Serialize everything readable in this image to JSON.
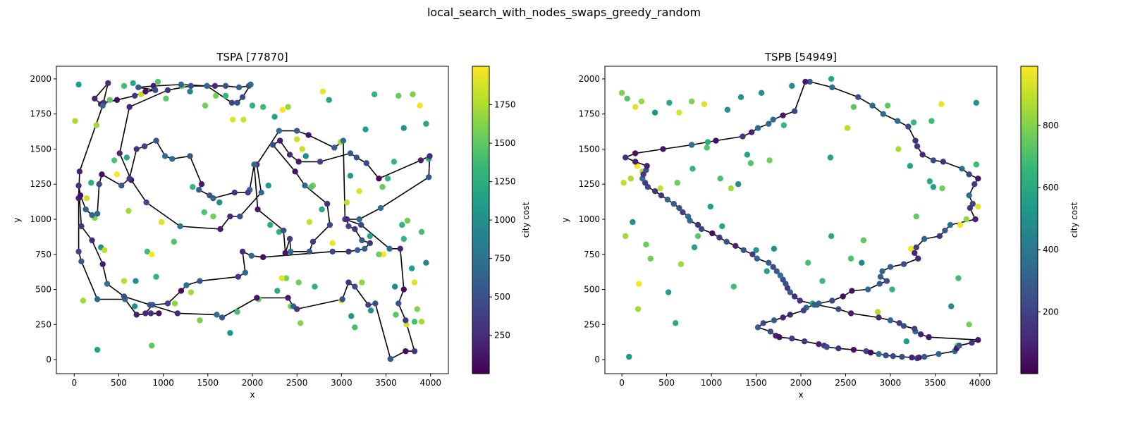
{
  "suptitle": "local_search_with_nodes_swaps_greedy_random",
  "colormap": [
    "#440154",
    "#482878",
    "#3e4989",
    "#31688e",
    "#26828e",
    "#1f9e89",
    "#35b779",
    "#6ece58",
    "#b5de2b",
    "#fde725"
  ],
  "chart_data": [
    {
      "type": "scatter",
      "title": "TSPA [77870]",
      "xlabel": "x",
      "ylabel": "y",
      "colorbar_label": "city cost",
      "xlim": [
        -200,
        4200
      ],
      "ylim": [
        -100,
        2090
      ],
      "xticks": [
        0,
        500,
        1000,
        1500,
        2000,
        2500,
        3000,
        3500,
        4000
      ],
      "yticks": [
        0,
        250,
        500,
        750,
        1000,
        1250,
        1500,
        1750,
        2000
      ],
      "cbar_range": [
        1,
        2000
      ],
      "cbar_ticks": [
        250,
        500,
        750,
        1000,
        1250,
        1500,
        1750
      ],
      "tour_x": [
        3550,
        3720,
        3820,
        3720,
        3640,
        3700,
        3660,
        3540,
        3220,
        3040,
        3020,
        2920,
        2630,
        2500,
        2300,
        2050,
        2100,
        1860,
        1750,
        1640,
        1190,
        810,
        640,
        510,
        620,
        1050,
        1310,
        1490,
        1580,
        1700,
        1850,
        1960,
        1980,
        1890,
        1830,
        1770,
        1490,
        1200,
        890,
        720,
        910,
        800,
        680,
        480,
        330,
        300,
        230,
        380,
        320,
        60,
        50,
        50,
        80,
        260,
        570,
        700,
        950,
        860,
        800,
        880,
        1050,
        1200,
        1260,
        1410,
        1840,
        1920,
        1890,
        1990,
        2120,
        2900,
        3080,
        3180,
        3260,
        3320,
        3230,
        3150,
        3080,
        3060,
        3200,
        3440,
        3980,
        3990,
        3890,
        3420,
        3280,
        3170,
        3100,
        2760,
        2520,
        2420,
        2310,
        2230,
        2480,
        2590,
        2840,
        2870,
        2680,
        2640,
        2430,
        2420,
        2370,
        2350,
        2060,
        2020,
        1970,
        1950,
        1800,
        1560,
        1520,
        1400,
        1430,
        1300,
        1100,
        1020,
        920,
        790,
        700,
        620,
        530,
        310,
        280,
        260,
        200,
        130,
        70,
        50,
        80,
        200,
        320,
        370,
        560,
        850,
        1160,
        1600,
        1660,
        2050,
        2400,
        2460,
        2500,
        3010,
        3080,
        3150,
        3300,
        3380,
        3550
      ],
      "tour_y": [
        5,
        60,
        60,
        280,
        400,
        500,
        790,
        790,
        960,
        1000,
        1560,
        1510,
        1600,
        1630,
        1630,
        1390,
        1190,
        1020,
        1020,
        930,
        950,
        1120,
        1280,
        1470,
        1800,
        1920,
        1950,
        1950,
        1950,
        1950,
        1940,
        1950,
        1960,
        1870,
        1830,
        1830,
        1950,
        1960,
        1950,
        1940,
        1920,
        1910,
        1880,
        1850,
        1830,
        1820,
        1860,
        1970,
        1810,
        1340,
        1150,
        770,
        700,
        430,
        430,
        320,
        330,
        330,
        330,
        390,
        400,
        490,
        530,
        560,
        590,
        620,
        770,
        740,
        730,
        770,
        770,
        780,
        790,
        830,
        850,
        930,
        950,
        1000,
        1000,
        1080,
        1300,
        1450,
        1420,
        1290,
        1400,
        1440,
        1470,
        1410,
        1410,
        1460,
        1560,
        1530,
        1340,
        1240,
        1110,
        960,
        840,
        770,
        770,
        860,
        760,
        920,
        1070,
        1390,
        1210,
        1190,
        1190,
        1150,
        1170,
        1210,
        1250,
        1450,
        1430,
        1450,
        1560,
        1520,
        1500,
        1290,
        1240,
        1320,
        1250,
        1040,
        1030,
        1070,
        1170,
        1240,
        950,
        850,
        680,
        540,
        450,
        390,
        330,
        320,
        300,
        440,
        440,
        380,
        360,
        430,
        550,
        520,
        390,
        400,
        5
      ],
      "tour_y_note": "",
      "extra_x": [
        50,
        250,
        400,
        560,
        660,
        750,
        900,
        940,
        1030,
        1210,
        1300,
        1470,
        1590,
        1700,
        1900,
        2000,
        2120,
        2250,
        2340,
        2400,
        2500,
        2560,
        2600,
        2680,
        2790,
        2860,
        2990,
        3100,
        3200,
        3270,
        3370,
        3460,
        3520,
        3590,
        3640,
        3700,
        3800,
        3880,
        3950,
        3980,
        10,
        140,
        230,
        300,
        450,
        560,
        610,
        690,
        820,
        870,
        980,
        1120,
        1330,
        1460,
        1630,
        1780,
        2200,
        2300,
        2380,
        2520,
        2660,
        2780,
        2900,
        3000,
        3110,
        3230,
        3330,
        3470,
        3610,
        3700,
        3740,
        3820,
        3900,
        3950,
        100,
        190,
        260,
        340,
        480,
        590,
        680,
        870,
        920,
        1130,
        1310,
        1410,
        1560,
        1750,
        1830,
        2070,
        2180,
        2280,
        2330,
        2430,
        2540,
        2640,
        2700,
        3060,
        3150,
        3320,
        3420,
        3600,
        3680,
        3730,
        3790,
        3820,
        3850,
        3900
      ],
      "extra_y": [
        1960,
        1670,
        1850,
        1950,
        1970,
        1890,
        1940,
        1980,
        1860,
        1950,
        1910,
        1810,
        1880,
        1880,
        1710,
        1810,
        1800,
        1730,
        1780,
        1800,
        1570,
        1500,
        1450,
        1240,
        1910,
        1850,
        1550,
        1310,
        1200,
        1640,
        1890,
        1230,
        1290,
        1410,
        1880,
        1650,
        1890,
        1810,
        1680,
        1430,
        1700,
        1150,
        1010,
        800,
        1420,
        560,
        1060,
        560,
        770,
        750,
        980,
        840,
        1230,
        1050,
        1120,
        1710,
        960,
        910,
        580,
        550,
        1230,
        1070,
        830,
        420,
        310,
        550,
        350,
        750,
        320,
        860,
        990,
        270,
        910,
        690,
        420,
        1260,
        70,
        780,
        1320,
        1440,
        380,
        100,
        590,
        400,
        480,
        280,
        1020,
        190,
        340,
        430,
        1240,
        490,
        580,
        380,
        260,
        980,
        520,
        1120,
        230,
        880,
        750,
        520,
        960,
        250,
        650,
        550,
        360,
        270
      ],
      "points_c": []
    },
    {
      "type": "scatter",
      "title": "TSPB [54949]",
      "xlabel": "x",
      "ylabel": "y",
      "colorbar_label": "city cost",
      "xlim": [
        -190,
        4190
      ],
      "ylim": [
        -100,
        2090
      ],
      "xticks": [
        0,
        500,
        1000,
        1500,
        2000,
        2500,
        3000,
        3500,
        4000
      ],
      "yticks": [
        0,
        250,
        500,
        750,
        1000,
        1250,
        1500,
        1750,
        2000
      ],
      "cbar_range": [
        1,
        990
      ],
      "cbar_ticks": [
        200,
        400,
        600,
        800
      ],
      "tour_x": [
        2100,
        2350,
        2640,
        2800,
        2920,
        3080,
        3200,
        3280,
        3300,
        3360,
        3480,
        3590,
        3800,
        3880,
        3980,
        3940,
        3880,
        3920,
        3890,
        3950,
        3670,
        3610,
        3550,
        3380,
        3290,
        3270,
        3310,
        3150,
        3000,
        2910,
        2890,
        2960,
        2880,
        2750,
        2570,
        2470,
        2350,
        2200,
        2150,
        2060,
        2030,
        1880,
        1800,
        1700,
        1580,
        1520,
        1660,
        1720,
        1760,
        1900,
        2040,
        2200,
        2260,
        2290,
        2420,
        2590,
        2730,
        2780,
        2870,
        2950,
        3030,
        3130,
        3240,
        3300,
        3320,
        3380,
        3540,
        3720,
        3740,
        3770,
        3910,
        3980,
        3430,
        3340,
        3280,
        3270,
        3150,
        3100,
        3000,
        2870,
        2560,
        2420,
        2180,
        1990,
        1930,
        1880,
        1850,
        1830,
        1800,
        1770,
        1730,
        1690,
        1640,
        1510,
        1460,
        1360,
        1270,
        1170,
        1090,
        1010,
        890,
        850,
        760,
        740,
        680,
        640,
        580,
        510,
        440,
        370,
        290,
        260,
        230,
        240,
        270,
        280,
        150,
        40,
        150,
        460,
        780,
        1050,
        1350,
        1450,
        1520,
        1640,
        1690,
        1800,
        1930,
        2050,
        2100
      ],
      "tour_y": [
        1980,
        1940,
        1870,
        1810,
        1750,
        1700,
        1660,
        1560,
        1520,
        1460,
        1420,
        1410,
        1360,
        1320,
        1290,
        1250,
        1170,
        1110,
        1080,
        1000,
        960,
        920,
        880,
        860,
        800,
        760,
        720,
        680,
        660,
        630,
        590,
        560,
        540,
        500,
        490,
        450,
        420,
        400,
        390,
        370,
        350,
        320,
        300,
        280,
        260,
        230,
        200,
        170,
        160,
        150,
        130,
        110,
        100,
        90,
        80,
        70,
        60,
        50,
        40,
        30,
        25,
        20,
        15,
        10,
        15,
        20,
        40,
        60,
        80,
        100,
        120,
        140,
        160,
        180,
        200,
        220,
        240,
        260,
        280,
        300,
        330,
        360,
        390,
        420,
        450,
        480,
        510,
        540,
        570,
        600,
        630,
        660,
        690,
        720,
        750,
        780,
        810,
        840,
        870,
        900,
        930,
        960,
        990,
        1020,
        1050,
        1080,
        1110,
        1140,
        1170,
        1200,
        1230,
        1260,
        1290,
        1320,
        1350,
        1380,
        1410,
        1440,
        1470,
        1500,
        1530,
        1560,
        1590,
        1620,
        1650,
        1680,
        1710,
        1740,
        1770,
        1980
      ],
      "tour_y_note": "",
      "extra_x": [
        0,
        60,
        150,
        220,
        370,
        530,
        640,
        780,
        920,
        1180,
        1330,
        1560,
        1900,
        2340,
        2590,
        2970,
        3260,
        3460,
        3570,
        3960,
        20,
        100,
        170,
        230,
        430,
        620,
        790,
        950,
        1100,
        1220,
        1400,
        1650,
        1810,
        2330,
        2520,
        2700,
        3090,
        3220,
        3440,
        3580,
        3780,
        3980,
        40,
        120,
        190,
        270,
        520,
        660,
        810,
        990,
        1120,
        1300,
        1440,
        1620,
        2080,
        2240,
        2680,
        3020,
        3230,
        3290,
        3480,
        3760,
        3850,
        3960,
        80,
        180,
        320,
        600,
        850,
        960,
        1250,
        1500,
        1700,
        2130,
        2340,
        2560,
        2860,
        3180,
        3680,
        3750,
        3880
      ],
      "extra_y": [
        1900,
        1860,
        1800,
        1840,
        1760,
        1830,
        1760,
        1840,
        1820,
        1780,
        1870,
        1900,
        1950,
        2000,
        1800,
        1810,
        1690,
        1700,
        1820,
        1830,
        1260,
        1290,
        1380,
        1340,
        1220,
        1260,
        1360,
        1510,
        1290,
        1220,
        1460,
        1420,
        1670,
        1440,
        1650,
        850,
        1500,
        1380,
        1270,
        1220,
        960,
        1090,
        880,
        980,
        540,
        820,
        480,
        680,
        800,
        1090,
        950,
        1250,
        1400,
        630,
        690,
        560,
        690,
        500,
        790,
        1020,
        1230,
        580,
        1000,
        1390,
        20,
        360,
        720,
        260,
        880,
        1550,
        520,
        780,
        790,
        400,
        880,
        720,
        340,
        130,
        380,
        100,
        250
      ],
      "points_c": []
    }
  ]
}
